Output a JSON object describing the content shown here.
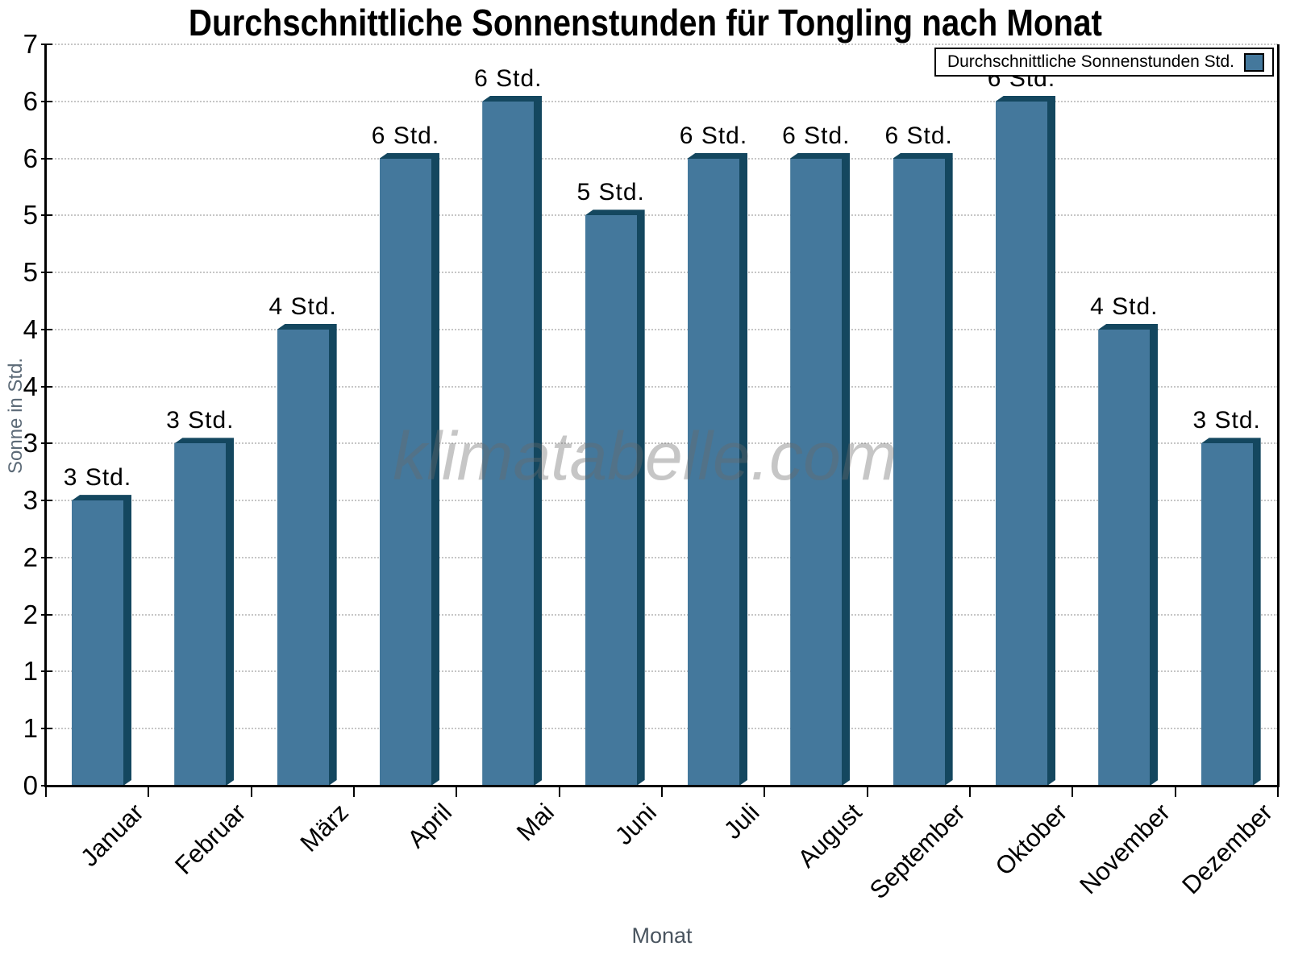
{
  "title": "Durchschnittliche Sonnenstunden für Tongling nach Monat",
  "watermark": "klimatabelle.com",
  "legend": {
    "label": "Durchschnittliche Sonnenstunden Std."
  },
  "x_axis_label": "Monat",
  "y_axis_label": "Sonne in Std.",
  "chart_data": {
    "type": "bar",
    "title": "Durchschnittliche Sonnenstunden für Tongling nach Monat",
    "xlabel": "Monat",
    "ylabel": "Sonne in Std.",
    "categories": [
      "Januar",
      "Februar",
      "März",
      "April",
      "Mai",
      "Juni",
      "Juli",
      "August",
      "September",
      "Oktober",
      "November",
      "Dezember"
    ],
    "values": [
      2.5,
      3,
      4,
      5.5,
      6,
      5,
      5.5,
      5.5,
      5.5,
      6,
      4,
      3
    ],
    "bar_labels": [
      "3 Std.",
      "3 Std.",
      "4 Std.",
      "6 Std.",
      "6 Std.",
      "5 Std.",
      "6 Std.",
      "6 Std.",
      "6 Std.",
      "6 Std.",
      "4 Std.",
      "3 Std."
    ],
    "ylim": [
      0,
      6.5
    ],
    "yticks": [
      0,
      0.5,
      1,
      1.5,
      2,
      2.5,
      3,
      3.5,
      4,
      4.5,
      5,
      5.5,
      6,
      6.5
    ],
    "ytick_labels": [
      "0",
      "1",
      "1",
      "2",
      "2",
      "3",
      "3",
      "4",
      "4",
      "5",
      "5",
      "6",
      "6",
      "7"
    ],
    "grid": {
      "horizontal": true,
      "style": "dotted",
      "color": "#c6c6c6"
    },
    "legend_entry": "Durchschnittliche Sonnenstunden Std.",
    "legend_position": "top-right",
    "colors": {
      "bar_front": "#44789C",
      "bar_side": "#14475F",
      "axis": "#000000",
      "x_title": "#49545f",
      "y_title": "#5c6a77",
      "watermark_gray": "#a9a9a9"
    }
  }
}
